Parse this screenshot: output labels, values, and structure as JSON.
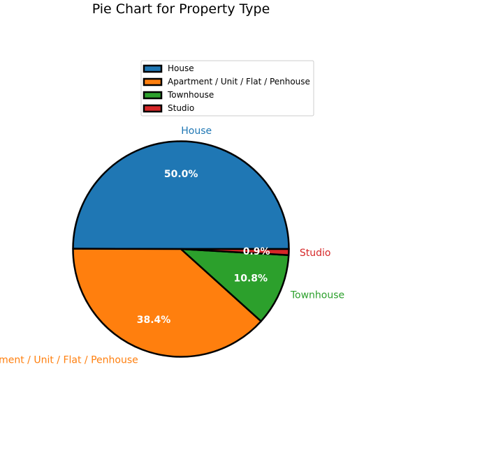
{
  "chart_data": {
    "type": "pie",
    "title": "Pie Chart for Property Type",
    "categories": [
      "House",
      "Apartment / Unit / Flat / Penhouse",
      "Townhouse",
      "Studio"
    ],
    "values": [
      50.0,
      38.4,
      10.8,
      0.9
    ],
    "percent_labels": [
      "50.0%",
      "38.4%",
      "10.8%",
      "0.9%"
    ],
    "colors": [
      "#1f77b4",
      "#ff7f0e",
      "#2ca02c",
      "#d62728"
    ],
    "legend": {
      "placement": "top-center",
      "entries": [
        "House",
        "Apartment / Unit / Flat / Penhouse",
        "Townhouse",
        "Studio"
      ]
    }
  }
}
